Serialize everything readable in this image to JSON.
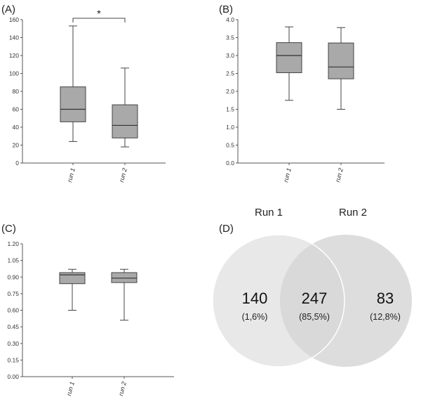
{
  "chart_data": [
    {
      "type": "box",
      "panel": "(A)",
      "categories": [
        "run 1",
        "run 2"
      ],
      "ylim": [
        0,
        160
      ],
      "yticks": [
        "0",
        "20",
        "40",
        "60",
        "80",
        "100",
        "120",
        "140",
        "160"
      ],
      "boxes": [
        {
          "name": "run 1",
          "min": 24,
          "q1": 46,
          "median": 60,
          "q3": 85,
          "max": 153
        },
        {
          "name": "run 2",
          "min": 18,
          "q1": 28,
          "median": 42,
          "q3": 65,
          "max": 106
        }
      ],
      "annotation": "*"
    },
    {
      "type": "box",
      "panel": "(B)",
      "categories": [
        "run 1",
        "run 2"
      ],
      "ylim": [
        0,
        4.0
      ],
      "yticks": [
        "0.0",
        "0.5",
        "1.0",
        "1.5",
        "2.0",
        "2.5",
        "3.0",
        "3.5",
        "4.0"
      ],
      "boxes": [
        {
          "name": "run 1",
          "min": 1.75,
          "q1": 2.52,
          "median": 3.0,
          "q3": 3.36,
          "max": 3.8
        },
        {
          "name": "run 2",
          "min": 1.5,
          "q1": 2.35,
          "median": 2.68,
          "q3": 3.35,
          "max": 3.78
        }
      ]
    },
    {
      "type": "box",
      "panel": "(C)",
      "categories": [
        "run 1",
        "run 2"
      ],
      "ylim": [
        0,
        1.2
      ],
      "yticks": [
        "0.00",
        "0.15",
        "0.30",
        "0.45",
        "0.60",
        "0.75",
        "0.90",
        "1.05",
        "1.20"
      ],
      "boxes": [
        {
          "name": "run 1",
          "min": 0.6,
          "q1": 0.84,
          "median": 0.92,
          "q3": 0.94,
          "max": 0.97
        },
        {
          "name": "run 2",
          "min": 0.51,
          "q1": 0.85,
          "median": 0.89,
          "q3": 0.94,
          "max": 0.97
        }
      ]
    },
    {
      "type": "venn",
      "panel": "(D)",
      "sets": [
        "Run 1",
        "Run 2"
      ],
      "regions": [
        {
          "count": "140",
          "percent": "(1,6%)"
        },
        {
          "count": "247",
          "percent": "(85,5%)"
        },
        {
          "count": "83",
          "percent": "(12,8%)"
        }
      ],
      "colors": {
        "left": "#e8e8e8",
        "right": "#d6d6d6",
        "overlap": "#c6c6c6"
      }
    }
  ]
}
